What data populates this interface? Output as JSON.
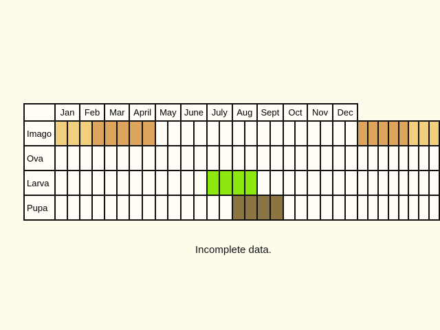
{
  "months": [
    "Jan",
    "Feb",
    "Mar",
    "April",
    "May",
    "June",
    "July",
    "Aug",
    "Sept",
    "Oct",
    "Nov",
    "Dec"
  ],
  "colors": {
    "background": "#fdfbe9",
    "empty": "#fffdf5",
    "imago_light": "#f2cf7c",
    "imago_dark": "#dda55c",
    "larva": "#8ee70e",
    "pupa": "#8c7543"
  },
  "stages": [
    {
      "name": "Imago",
      "cells": [
        "imago_light",
        "imago_light",
        "imago_light",
        "imago_dark",
        "imago_dark",
        "imago_dark",
        "imago_dark",
        "imago_dark",
        "",
        "",
        "",
        "",
        "",
        "",
        "",
        "",
        "",
        "",
        "",
        "",
        "",
        "",
        "",
        "",
        "imago_dark",
        "imago_dark",
        "imago_dark",
        "imago_dark",
        "imago_dark",
        "imago_light",
        "imago_light",
        "imago_light"
      ]
    },
    {
      "name": "Ova",
      "cells": [
        "",
        "",
        "",
        "",
        "",
        "",
        "",
        "",
        "",
        "",
        "",
        "",
        "",
        "",
        "",
        "",
        "",
        "",
        "",
        "",
        "",
        "",
        "",
        "",
        "",
        "",
        "",
        "",
        "",
        "",
        "",
        ""
      ]
    },
    {
      "name": "Larva",
      "cells": [
        "",
        "",
        "",
        "",
        "",
        "",
        "",
        "",
        "",
        "",
        "",
        "",
        "larva",
        "larva",
        "larva",
        "larva",
        "",
        "",
        "",
        "",
        "",
        "",
        "",
        "",
        "",
        "",
        "",
        "",
        "",
        "",
        "",
        ""
      ]
    },
    {
      "name": "Pupa",
      "cells": [
        "",
        "",
        "",
        "",
        "",
        "",
        "",
        "",
        "",
        "",
        "",
        "",
        "",
        "",
        "pupa",
        "pupa",
        "pupa",
        "pupa",
        "",
        "",
        "",
        "",
        "",
        "",
        "",
        "",
        "",
        "",
        "",
        "",
        "",
        ""
      ]
    }
  ],
  "note": "Incomplete data."
}
